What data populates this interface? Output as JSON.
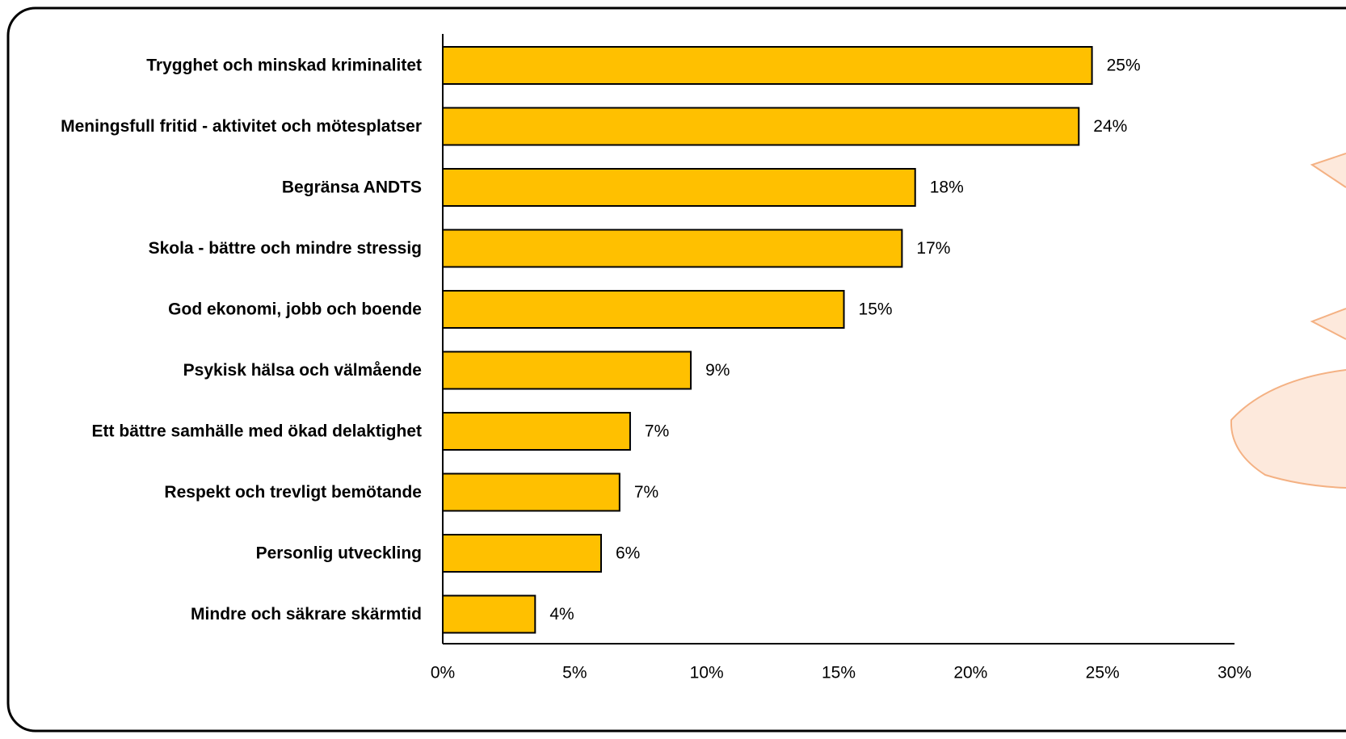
{
  "colors": {
    "bar_fill": "#FFC000",
    "bar_stroke": "#000000",
    "axis": "#000000",
    "callout_fill": "#FDE9DC",
    "callout_stroke": "#F4B183",
    "frame": "#000000"
  },
  "chart_data": {
    "type": "bar",
    "orientation": "horizontal",
    "categories": [
      "Trygghet och minskad kriminalitet",
      "Meningsfull fritid - aktivitet och mötesplatser",
      "Begränsa ANDTS",
      "Skola - bättre och mindre stressig",
      "God ekonomi, jobb och boende",
      "Psykisk hälsa och välmående",
      "Ett bättre samhälle med ökad delaktighet",
      "Respekt och trevligt bemötande",
      "Personlig utveckling",
      "Mindre och säkrare skärmtid"
    ],
    "values": [
      24.6,
      24.1,
      17.9,
      17.4,
      15.2,
      9.4,
      7.1,
      6.7,
      6.0,
      3.5
    ],
    "value_labels": [
      "25%",
      "24%",
      "18%",
      "17%",
      "15%",
      "9%",
      "7%",
      "7%",
      "6%",
      "4%"
    ],
    "xticks": [
      0,
      5,
      10,
      15,
      20,
      25,
      30
    ],
    "xtick_labels": [
      "0%",
      "5%",
      "10%",
      "15%",
      "20%",
      "25%",
      "30%"
    ],
    "xlim": [
      0,
      30
    ],
    "title": "",
    "xlabel": "",
    "ylabel": "",
    "grid": false,
    "legend": "none"
  }
}
